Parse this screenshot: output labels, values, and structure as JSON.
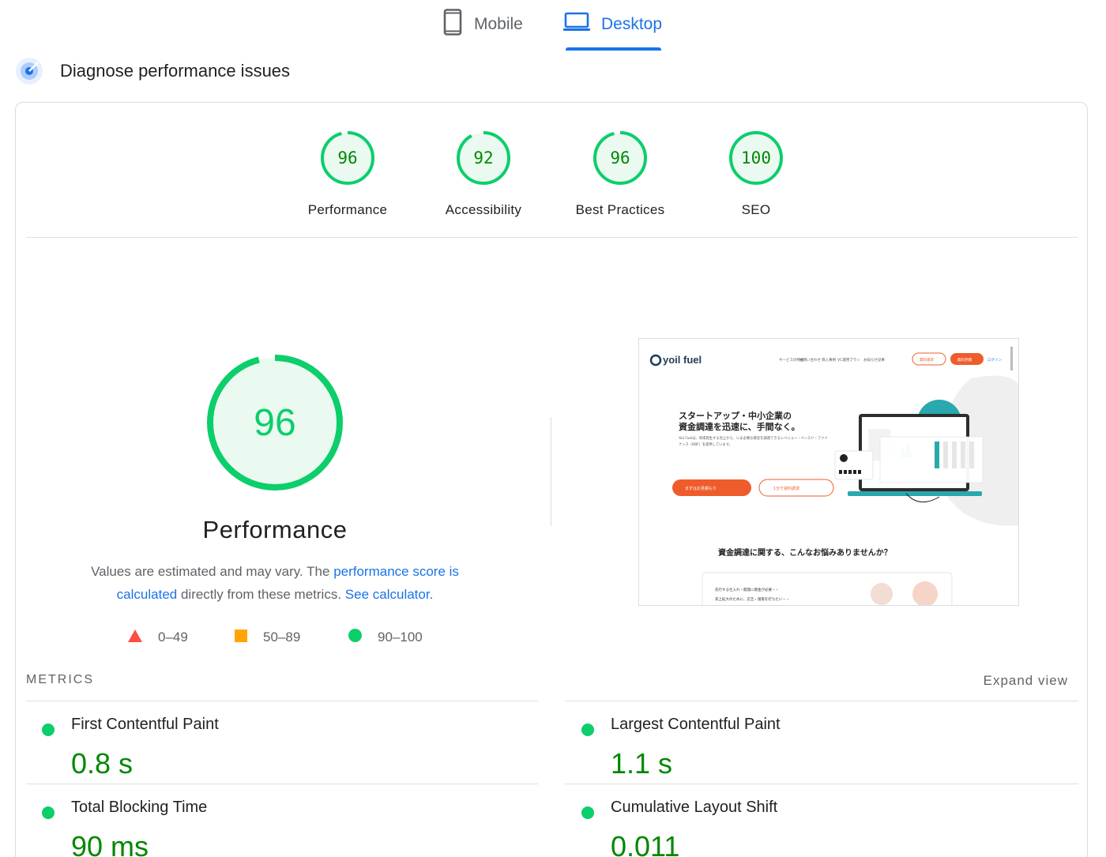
{
  "tabs": {
    "mobile_label": "Mobile",
    "desktop_label": "Desktop"
  },
  "diagnose": {
    "title": "Diagnose performance issues"
  },
  "scores": [
    {
      "value": "96",
      "label": "Performance",
      "score": 96
    },
    {
      "value": "92",
      "label": "Accessibility",
      "score": 92
    },
    {
      "value": "96",
      "label": "Best Practices",
      "score": 96
    },
    {
      "value": "100",
      "label": "SEO",
      "score": 100
    }
  ],
  "performance": {
    "score": "96",
    "score_fraction": 0.96,
    "title": "Performance",
    "desc_prefix": "Values are estimated and may vary. The ",
    "desc_link1": "performance score is calculated",
    "desc_middle": " directly from these metrics. ",
    "desc_link2": "See calculator."
  },
  "legend": {
    "fail": "0–49",
    "average": "50–89",
    "pass": "90–100"
  },
  "screenshot": {
    "logo": "yoil fuel",
    "nav": [
      "サービスの特長",
      "お問い合わせ",
      "導入事例",
      "VC運用プラン",
      "お知らせ記事"
    ],
    "btn_docs": "資料請求",
    "btn_free": "無料見積",
    "login": "ログイン",
    "headline1": "スタートアップ・中小企業の",
    "headline2": "資金調達を迅速に、手間なく。",
    "body": "Yoii Fuelは、将来発生する売上から、いま必要な資金を調達できるレベニュー・ベースド・ファイナンス（RBF）を提供しています。",
    "cta1": "まずはお見積もり",
    "cta2": "1分で資料請求",
    "section_title": "資金調達に関する、こんなお悩みありませんか？",
    "bullet1": "先行する仕入れ・開発に資金が必要・・",
    "bullet2": "売上拡大のために、広告・施策を打ちたい・・"
  },
  "metrics": {
    "header": "METRICS",
    "expand": "Expand view",
    "items": [
      {
        "name": "First Contentful Paint",
        "value": "0.8 s"
      },
      {
        "name": "Largest Contentful Paint",
        "value": "1.1 s"
      },
      {
        "name": "Total Blocking Time",
        "value": "90 ms"
      },
      {
        "name": "Cumulative Layout Shift",
        "value": "0.011"
      }
    ]
  },
  "colors": {
    "accent": "#1a73e8",
    "pass": "#0cce6b",
    "pass_text": "#008800",
    "average": "#ffa400",
    "fail": "#ff4e42"
  }
}
